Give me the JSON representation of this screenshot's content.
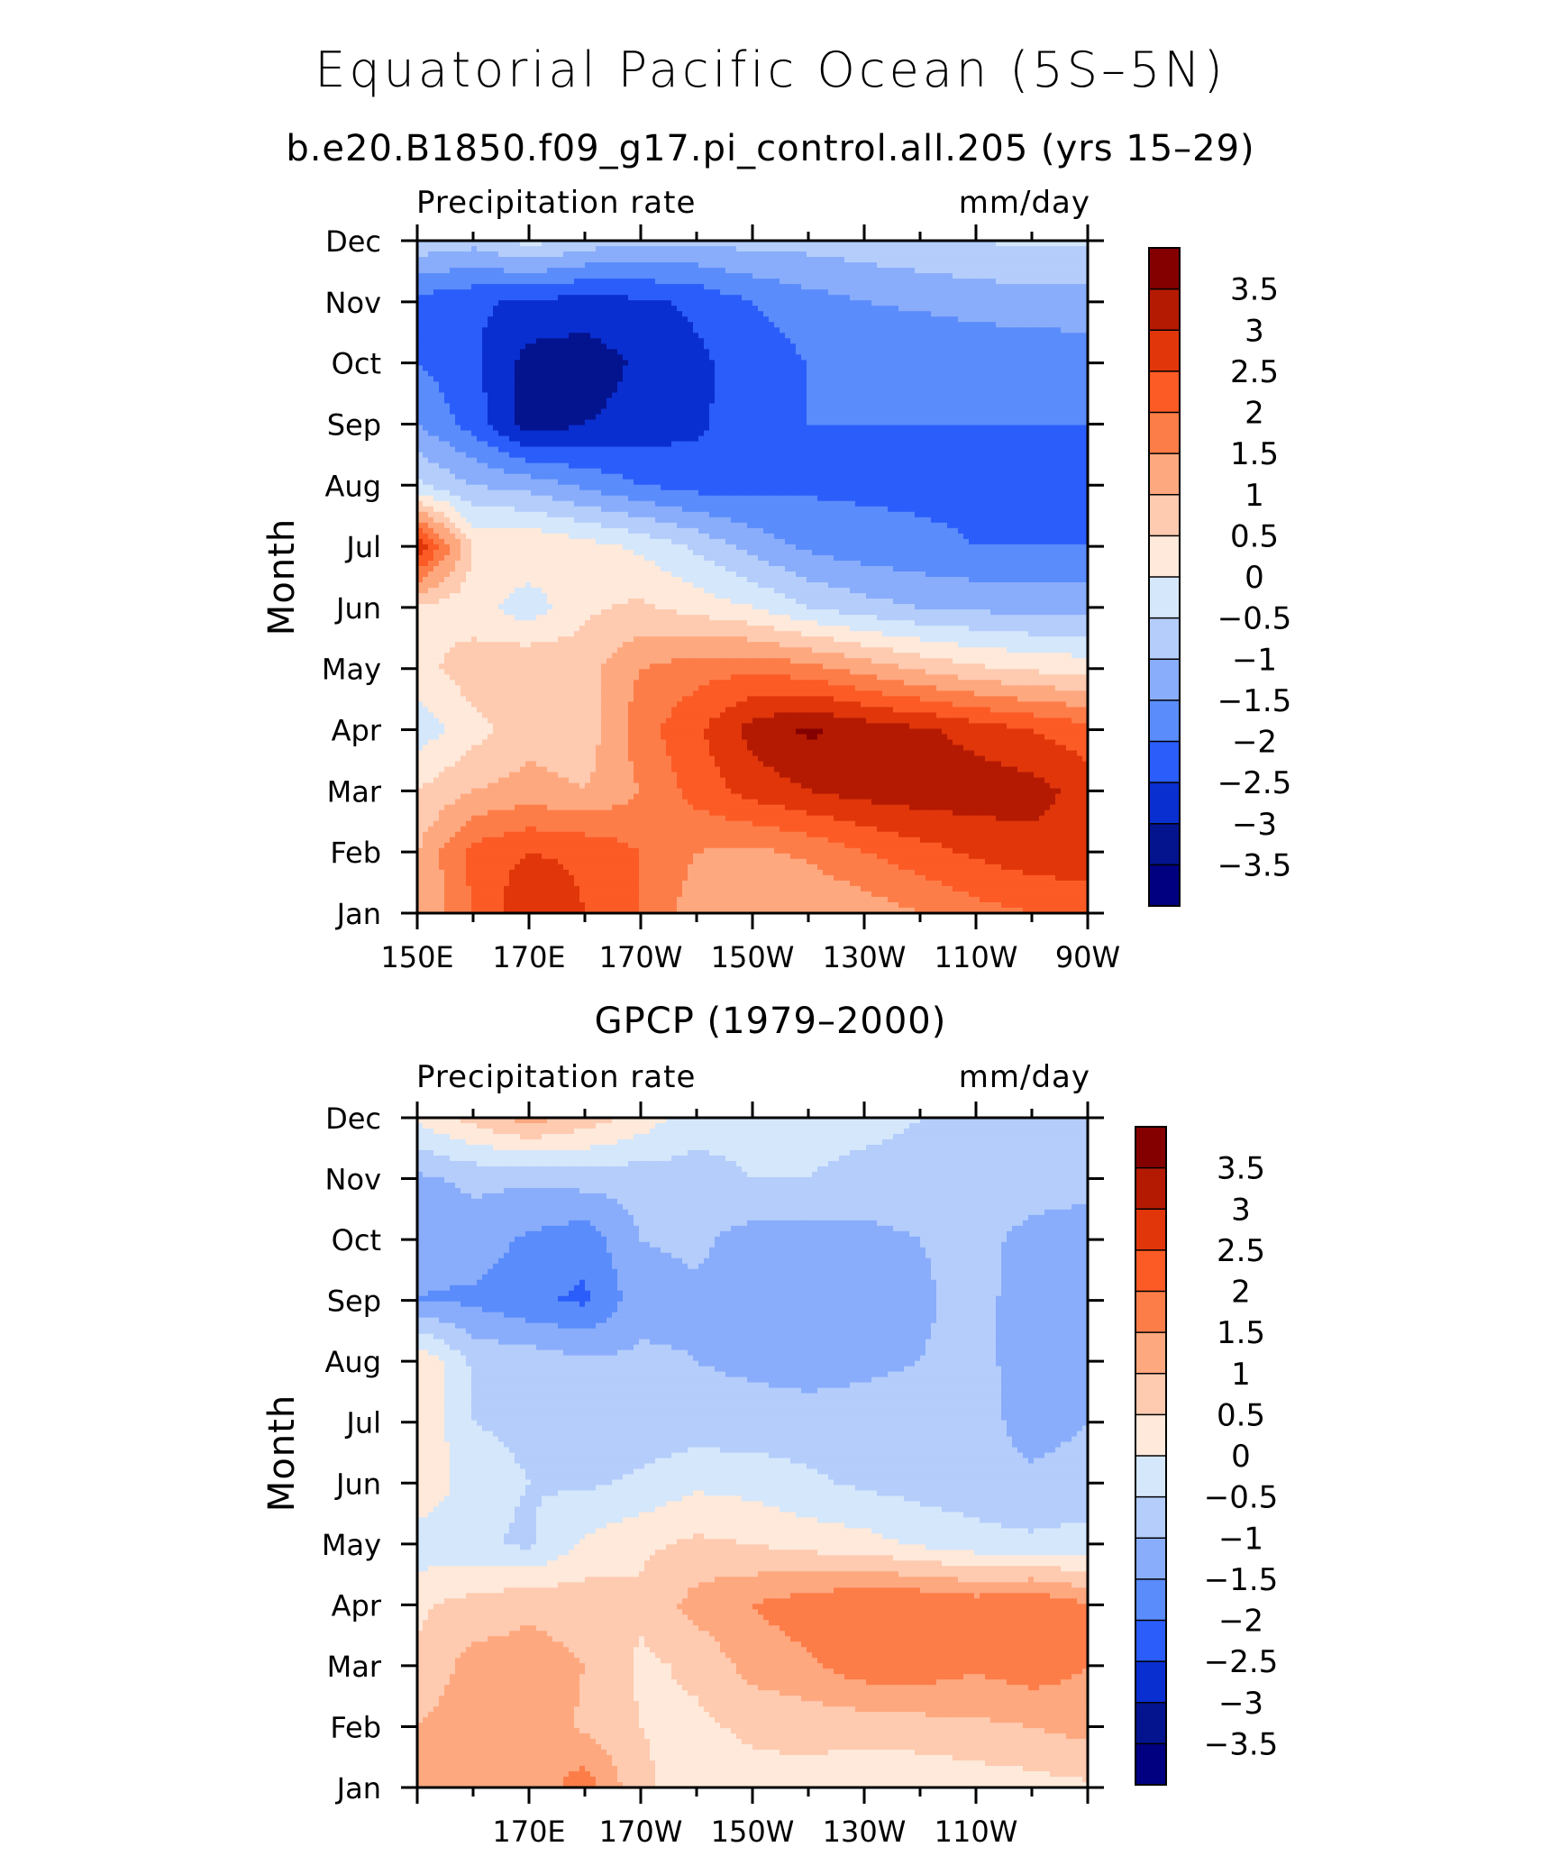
{
  "figure": {
    "title": "Equatorial Pacific Ocean (5S–5N)"
  },
  "colorbar": {
    "labels": [
      "3.5",
      "3",
      "2.5",
      "2",
      "1.5",
      "1",
      "0.5",
      "0",
      "−0.5",
      "−1",
      "−1.5",
      "−2",
      "−2.5",
      "−3",
      "−3.5"
    ],
    "colors": [
      "#840000",
      "#b41a02",
      "#e0360a",
      "#fc5b25",
      "#fd7d49",
      "#fea87f",
      "#fecab0",
      "#fee9da",
      "#d5e7fb",
      "#b4cdfb",
      "#89adfb",
      "#5a8cfb",
      "#2b5dfb",
      "#0a2fd0",
      "#04138e",
      "#000080"
    ]
  },
  "chart_data": [
    {
      "type": "heatmap",
      "title": "b.e20.B1850.f09_g17.pi_control.all.205 (yrs 15–29)",
      "left_label": "Precipitation rate",
      "right_label": "mm/day",
      "ylabel": "Month",
      "xlim": [
        150,
        270
      ],
      "x_ticks": [
        150,
        170,
        190,
        210,
        230,
        250,
        270
      ],
      "x_tick_labels": [
        "150E",
        "170E",
        "170W",
        "150W",
        "130W",
        "110W",
        "90W"
      ],
      "y_tick_labels": [
        "Jan",
        "Feb",
        "Mar",
        "Apr",
        "May",
        "Jun",
        "Jul",
        "Aug",
        "Sep",
        "Oct",
        "Nov",
        "Dec"
      ],
      "levels": [
        -3.5,
        -3,
        -2.5,
        -2,
        -1.5,
        -1,
        -0.5,
        0,
        0.5,
        1,
        1.5,
        2,
        2.5,
        3,
        3.5
      ],
      "x": [
        150,
        160,
        170,
        180,
        190,
        200,
        210,
        220,
        230,
        240,
        250,
        260,
        270
      ],
      "z": [
        [
          1.0,
          2.0,
          3.0,
          2.5,
          2.0,
          1.2,
          1.0,
          1.0,
          1.2,
          1.5,
          1.8,
          2.0,
          2.2
        ],
        [
          1.0,
          2.2,
          2.5,
          2.4,
          2.0,
          1.5,
          1.4,
          1.6,
          2.0,
          2.3,
          2.6,
          2.8,
          2.8
        ],
        [
          0.5,
          1.0,
          1.2,
          1.0,
          1.5,
          2.2,
          2.7,
          3.0,
          3.2,
          3.3,
          3.3,
          3.2,
          2.8
        ],
        [
          -0.3,
          0.3,
          0.8,
          0.7,
          1.8,
          2.4,
          3.2,
          3.6,
          3.3,
          3.1,
          2.8,
          2.5,
          2.2
        ],
        [
          0.3,
          0.8,
          1.0,
          0.8,
          1.5,
          1.8,
          1.9,
          1.7,
          1.3,
          0.9,
          0.6,
          0.4,
          0.3
        ],
        [
          0.4,
          0.2,
          -0.3,
          0.4,
          0.6,
          0.3,
          0.0,
          -0.5,
          -0.8,
          -1.0,
          -1.1,
          -1.2,
          -1.2
        ],
        [
          3.0,
          0.5,
          0.5,
          0.2,
          -0.1,
          -0.6,
          -1.2,
          -1.6,
          -1.8,
          -1.9,
          -2.0,
          -2.0,
          -2.0
        ],
        [
          -0.4,
          -1.0,
          -1.2,
          -1.6,
          -2.0,
          -2.2,
          -2.2,
          -2.1,
          -2.1,
          -2.1,
          -2.1,
          -2.1,
          -2.1
        ],
        [
          -1.5,
          -2.2,
          -3.3,
          -3.0,
          -2.8,
          -2.6,
          -2.2,
          -2.0,
          -2.0,
          -2.0,
          -2.0,
          -2.0,
          -2.0
        ],
        [
          -2.0,
          -2.4,
          -3.2,
          -3.3,
          -2.9,
          -2.6,
          -2.3,
          -2.0,
          -2.0,
          -2.0,
          -1.9,
          -1.9,
          -1.8
        ],
        [
          -2.2,
          -2.4,
          -2.6,
          -2.7,
          -2.6,
          -2.4,
          -2.0,
          -1.7,
          -1.5,
          -1.4,
          -1.3,
          -1.2,
          -1.2
        ],
        [
          -0.6,
          -0.8,
          -0.3,
          -0.7,
          -0.9,
          -0.9,
          -0.8,
          -0.8,
          -0.7,
          -0.6,
          -0.5,
          -0.4,
          -0.4
        ]
      ]
    },
    {
      "type": "heatmap",
      "title": "GPCP (1979–2000)",
      "left_label": "Precipitation rate",
      "right_label": "mm/day",
      "ylabel": "Month",
      "xlim": [
        150,
        270
      ],
      "x_ticks": [
        170,
        190,
        210,
        230,
        250
      ],
      "x_tick_labels": [
        "170E",
        "170W",
        "150W",
        "130W",
        "110W"
      ],
      "y_tick_labels": [
        "Jan",
        "Feb",
        "Mar",
        "Apr",
        "May",
        "Jun",
        "Jul",
        "Aug",
        "Sep",
        "Oct",
        "Nov",
        "Dec"
      ],
      "levels": [
        -3.5,
        -3,
        -2.5,
        -2,
        -1.5,
        -1,
        -0.5,
        0,
        0.5,
        1,
        1.5,
        2,
        2.5,
        3,
        3.5
      ],
      "x": [
        150,
        160,
        170,
        180,
        190,
        200,
        210,
        220,
        230,
        240,
        250,
        260,
        270
      ],
      "z": [
        [
          1.0,
          1.2,
          1.1,
          1.8,
          0.6,
          0.2,
          0.3,
          0.3,
          0.1,
          0.1,
          0.2,
          0.3,
          0.4
        ],
        [
          1.0,
          1.3,
          1.5,
          0.9,
          0.5,
          0.4,
          0.6,
          0.7,
          0.7,
          0.8,
          0.9,
          1.0,
          1.2
        ],
        [
          0.6,
          1.2,
          1.2,
          1.0,
          0.4,
          0.6,
          1.2,
          1.4,
          1.8,
          1.8,
          1.6,
          1.8,
          1.5
        ],
        [
          0.4,
          0.7,
          0.9,
          0.8,
          0.6,
          1.2,
          1.5,
          1.8,
          2.0,
          2.0,
          1.8,
          2.0,
          1.5
        ],
        [
          -0.3,
          -0.4,
          -0.6,
          0.1,
          0.4,
          0.6,
          0.5,
          0.3,
          0.2,
          -0.1,
          -0.3,
          -0.4,
          -0.3
        ],
        [
          0.5,
          -0.3,
          -0.5,
          -0.6,
          -0.4,
          -0.1,
          -0.2,
          -0.4,
          -0.6,
          -0.7,
          -0.8,
          -0.9,
          -0.8
        ],
        [
          0.5,
          -0.5,
          -0.6,
          -0.8,
          -0.8,
          -0.8,
          -0.8,
          -0.8,
          -0.8,
          -0.8,
          -0.8,
          -1.2,
          -1.0
        ],
        [
          0.5,
          -0.6,
          -0.7,
          -0.9,
          -0.9,
          -1.0,
          -1.1,
          -1.2,
          -1.1,
          -1.0,
          -0.8,
          -1.3,
          -1.0
        ],
        [
          -1.5,
          -1.6,
          -1.9,
          -2.1,
          -1.2,
          -1.1,
          -1.2,
          -1.3,
          -1.2,
          -1.1,
          -0.8,
          -1.3,
          -1.2
        ],
        [
          -1.4,
          -1.2,
          -1.6,
          -1.8,
          -1.0,
          -0.9,
          -1.2,
          -1.2,
          -1.2,
          -1.0,
          -0.8,
          -1.2,
          -1.3
        ],
        [
          -1.1,
          -0.9,
          -0.9,
          -0.8,
          -0.8,
          -0.7,
          -0.5,
          -0.5,
          -0.6,
          -0.6,
          -0.6,
          -0.7,
          -0.8
        ],
        [
          0.1,
          0.7,
          1.2,
          0.8,
          0.3,
          -0.3,
          -0.3,
          -0.4,
          -0.4,
          -0.5,
          -0.5,
          -0.5,
          -0.5
        ]
      ]
    }
  ]
}
